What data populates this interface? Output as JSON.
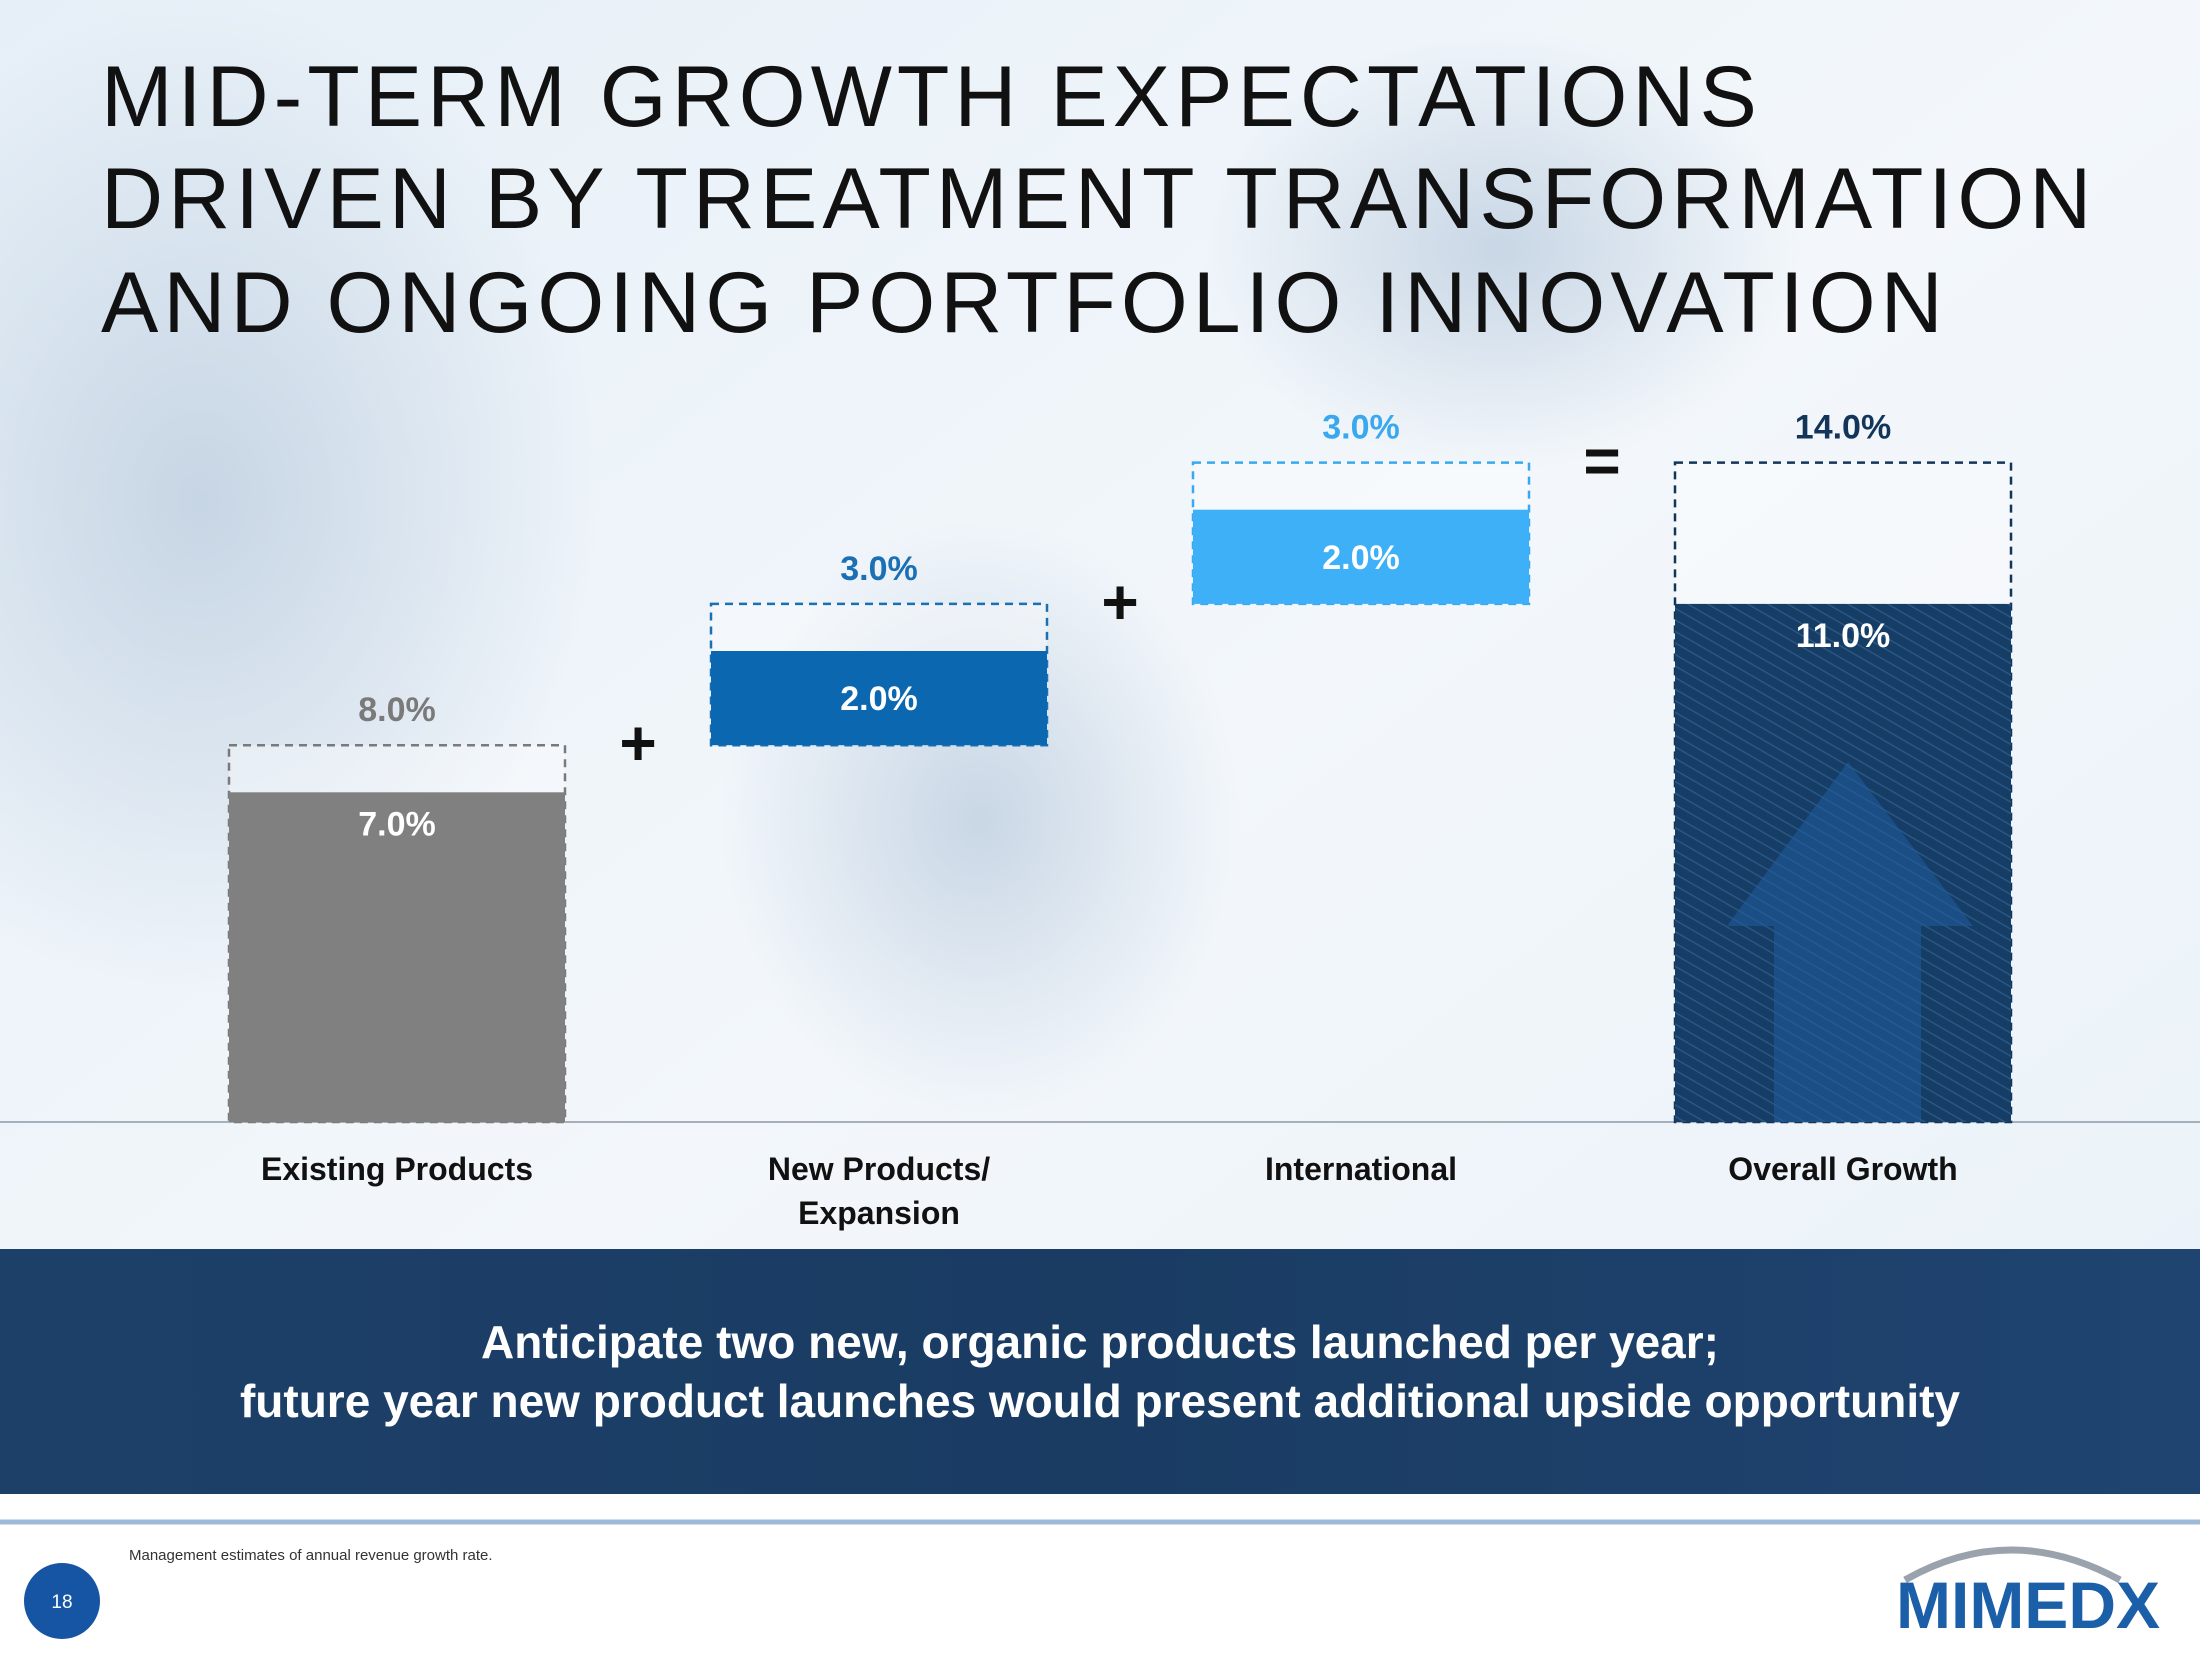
{
  "header": {
    "title_lines": [
      "MID-TERM GROWTH EXPECTATIONS",
      "DRIVEN BY TREATMENT TRANSFORMATION",
      "AND ONGOING PORTFOLIO INNOVATION"
    ]
  },
  "chart_data": {
    "type": "waterfall",
    "categories": [
      "Existing Products",
      "New Products/ Expansion",
      "International",
      "Overall Growth"
    ],
    "low": {
      "values": [
        7.0,
        2.0,
        2.0,
        11.0
      ],
      "value_labels": [
        "7.0%",
        "2.0%",
        "2.0%",
        "11.0%"
      ],
      "colors": [
        "#808080",
        "#0b68b0",
        "#3db0f7",
        "#153c63"
      ]
    },
    "high": {
      "values": [
        8.0,
        3.0,
        3.0,
        14.0
      ],
      "value_labels": [
        "8.0%",
        "3.0%",
        "3.0%",
        "14.0%"
      ],
      "colors": [
        "#7a7a7a",
        "#1b6fb3",
        "#3aa8ee",
        "#13355a"
      ]
    },
    "operators": [
      "+",
      "+",
      "="
    ],
    "hatch_total": true
  },
  "banner": {
    "lines": [
      "Anticipate two new, organic products launched per year;",
      "future year new product launches would present additional upside opportunity"
    ]
  },
  "footer": {
    "note": "Management estimates of annual revenue growth rate.",
    "page_number": "18",
    "logo": "MIMEDX"
  }
}
